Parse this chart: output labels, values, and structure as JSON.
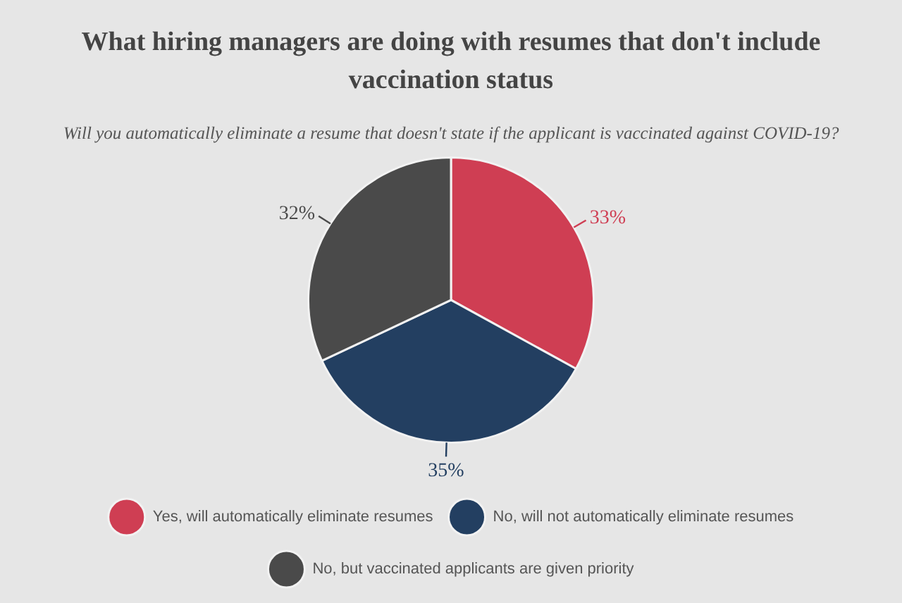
{
  "chart_data": {
    "type": "pie",
    "title": "What hiring managers are doing with resumes that don't include vaccination status",
    "subtitle": "Will you automatically eliminate a resume that doesn't state if the applicant is vaccinated against COVID-19?",
    "categories": [
      "Yes, will automatically eliminate resumes",
      "No, will not automatically eliminate resumes",
      "No, but vaccinated applicants are given priority"
    ],
    "values": [
      33,
      35,
      32
    ],
    "colors": [
      "#cf3e53",
      "#233f61",
      "#4a4a4a"
    ],
    "value_labels": [
      "33%",
      "35%",
      "32%"
    ],
    "legend": "bottom"
  }
}
